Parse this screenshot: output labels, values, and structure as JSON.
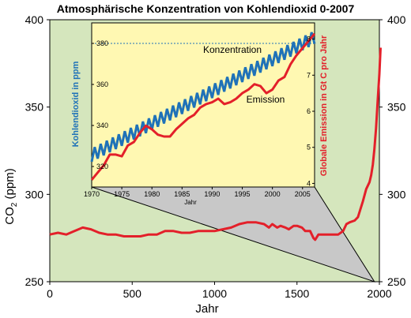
{
  "chart_data": [
    {
      "type": "line",
      "title": "Atmosphärische Konzentration von Kohlendioxid 0-2007",
      "xlabel": "Jahr",
      "ylabel": "CO2 (ppm)",
      "ylabel_main": "CO",
      "ylabel_sub": "2",
      "ylabel_rest": " (ppm)",
      "xlim": [
        0,
        2000
      ],
      "ylim": [
        250,
        400
      ],
      "x_ticks": [
        0,
        500,
        1000,
        1500,
        2000
      ],
      "y_ticks": [
        250,
        300,
        350,
        400
      ],
      "background": "#d5e6bd",
      "series": [
        {
          "color": "#e3202a",
          "x": [
            0,
            50,
            100,
            150,
            200,
            250,
            300,
            350,
            400,
            450,
            500,
            550,
            600,
            650,
            700,
            750,
            800,
            850,
            900,
            950,
            1000,
            1050,
            1100,
            1150,
            1200,
            1250,
            1300,
            1330,
            1350,
            1380,
            1400,
            1430,
            1450,
            1480,
            1500,
            1530,
            1550,
            1580,
            1600,
            1610,
            1630,
            1650,
            1700,
            1750,
            1780,
            1800,
            1820,
            1850,
            1870,
            1900,
            1920,
            1940,
            1950,
            1960,
            1970,
            1980,
            1990,
            2000,
            2007
          ],
          "y": [
            277,
            278,
            277,
            279,
            281,
            280,
            278,
            277,
            277,
            276,
            276,
            276,
            277,
            277,
            279,
            279,
            278,
            278,
            279,
            279,
            279,
            280,
            281,
            283,
            284,
            284,
            283,
            281,
            283,
            281,
            282,
            281,
            280,
            282,
            282,
            281,
            279,
            279,
            275,
            274,
            277,
            277,
            277,
            277,
            279,
            283,
            284,
            285,
            287,
            296,
            303,
            307,
            311,
            317,
            326,
            338,
            354,
            369,
            384
          ]
        }
      ]
    },
    {
      "type": "line",
      "xlabel": "Jahr",
      "ylabel": "Kohlendioxid in ppm",
      "y2label": "Globale Emission in Gt C pro Jahr",
      "xlim": [
        1970,
        2007
      ],
      "ylim": [
        310,
        390
      ],
      "y2lim": [
        3.9,
        8.45
      ],
      "x_ticks": [
        1970,
        1975,
        1980,
        1985,
        1990,
        1995,
        2000,
        2005
      ],
      "y_ticks": [
        320,
        340,
        360,
        380
      ],
      "y2_ticks": [
        4,
        5,
        6,
        7,
        8
      ],
      "reference_line_y": 380,
      "background": "#fff8b2",
      "annotations": [
        "Konzentration",
        "Emission"
      ],
      "series": [
        {
          "name": "Konzentration",
          "axis": "left",
          "color": "#1f72b8",
          "x_start": 1970,
          "x_end": 2007,
          "y_start": 325.5,
          "y_end": 383,
          "seasonal_amplitude": 3.2
        },
        {
          "name": "Emission",
          "axis": "right",
          "color": "#e3202a",
          "x": [
            1970,
            1971,
            1972,
            1973,
            1974,
            1975,
            1976,
            1977,
            1978,
            1979,
            1980,
            1981,
            1982,
            1983,
            1984,
            1985,
            1986,
            1987,
            1988,
            1989,
            1990,
            1991,
            1992,
            1993,
            1994,
            1995,
            1996,
            1997,
            1998,
            1999,
            2000,
            2001,
            2002,
            2003,
            2004,
            2005,
            2006,
            2007
          ],
          "y": [
            4.1,
            4.3,
            4.5,
            4.8,
            4.8,
            4.75,
            5.05,
            5.15,
            5.4,
            5.6,
            5.5,
            5.35,
            5.3,
            5.3,
            5.5,
            5.65,
            5.8,
            5.9,
            6.1,
            6.2,
            6.25,
            6.35,
            6.2,
            6.25,
            6.35,
            6.5,
            6.6,
            6.75,
            6.7,
            6.5,
            6.6,
            6.85,
            6.95,
            7.3,
            7.55,
            7.75,
            7.95,
            8.15
          ]
        }
      ]
    }
  ]
}
